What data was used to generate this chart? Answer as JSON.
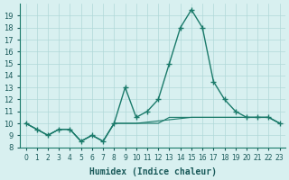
{
  "xlabel": "Humidex (Indice chaleur)",
  "ylabel": "",
  "bg_color": "#d8f0f0",
  "grid_color": "#b0d8d8",
  "line_color": "#1a7a6a",
  "x_values": [
    0,
    1,
    2,
    3,
    4,
    5,
    6,
    7,
    8,
    9,
    10,
    11,
    12,
    13,
    14,
    15,
    16,
    17,
    18,
    19,
    20,
    21,
    22,
    23
  ],
  "series1": [
    10,
    9.5,
    9,
    9.5,
    9.5,
    8.5,
    9,
    8.5,
    10,
    13,
    10.5,
    11,
    12,
    15,
    18,
    19.5,
    18,
    13.5,
    12,
    11,
    10.5,
    10.5,
    10.5,
    10
  ],
  "series2": [
    10,
    9.5,
    9,
    9.5,
    9.5,
    8.5,
    9,
    8.5,
    10,
    10,
    10,
    10,
    10,
    10.5,
    10.5,
    10.5,
    10.5,
    10.5,
    10.5,
    10.5,
    10.5,
    10.5,
    10.5,
    10
  ],
  "series3": [
    10,
    9.5,
    9,
    9.5,
    9.5,
    8.5,
    9,
    8.5,
    10,
    10,
    10.0,
    10.1,
    10.2,
    10.3,
    10.4,
    10.5,
    10.5,
    10.5,
    10.5,
    10.5,
    10.5,
    10.5,
    10.5,
    10
  ],
  "ylim": [
    8,
    20
  ],
  "yticks": [
    8,
    9,
    10,
    11,
    12,
    13,
    14,
    15,
    16,
    17,
    18,
    19
  ],
  "xlim": [
    -0.5,
    23.5
  ]
}
